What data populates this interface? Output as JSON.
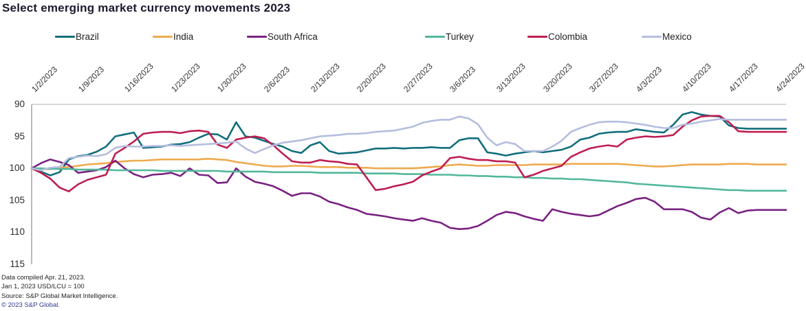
{
  "title": "Select emerging market currency movements 2023",
  "colors": {
    "title_text": "#1a1a2e",
    "axis_line": "#9c9c9c",
    "gridline_90": "#bfbfbf",
    "tick_text": "#333333",
    "footnote_text": "#222222",
    "copyright_text": "#2d3a8c"
  },
  "footer": {
    "lines": [
      "Data compiled Apr. 21, 2023.",
      "Jan 1, 2023 USD/LCU = 100",
      "Source: S&P Global Market Intelligence.",
      "© 2023 S&P Global."
    ]
  },
  "chart_data": {
    "type": "line",
    "title": "Select emerging market currency movements 2023",
    "xlabel": "",
    "ylabel": "",
    "baseline_note": "Jan 1, 2023 USD/LCU = 100",
    "y_ticks": [
      90,
      95,
      100,
      105,
      110,
      115
    ],
    "ylim": [
      90,
      115
    ],
    "y_axis_inverted": true,
    "grid": "single gridline at 90 (top of plot), left axis line only",
    "legend_position": "top",
    "x_tick_labels": [
      "1/2/2023",
      "1/9/2023",
      "1/16/2023",
      "1/23/2023",
      "1/30/2023",
      "2/6/2023",
      "2/13/2023",
      "2/20/2023",
      "2/27/2023",
      "3/6/2023",
      "3/13/2023",
      "3/20/2023",
      "3/27/2023",
      "4/3/2023",
      "4/10/2023",
      "4/17/2023",
      "4/24/2023"
    ],
    "dates": [
      "1/2",
      "1/3",
      "1/4",
      "1/5",
      "1/6",
      "1/9",
      "1/10",
      "1/11",
      "1/12",
      "1/13",
      "1/16",
      "1/17",
      "1/18",
      "1/19",
      "1/20",
      "1/23",
      "1/24",
      "1/25",
      "1/26",
      "1/27",
      "1/30",
      "1/31",
      "2/1",
      "2/2",
      "2/3",
      "2/6",
      "2/7",
      "2/8",
      "2/9",
      "2/10",
      "2/13",
      "2/14",
      "2/15",
      "2/16",
      "2/17",
      "2/20",
      "2/21",
      "2/22",
      "2/23",
      "2/24",
      "2/27",
      "2/28",
      "3/1",
      "3/2",
      "3/3",
      "3/6",
      "3/7",
      "3/8",
      "3/9",
      "3/10",
      "3/13",
      "3/14",
      "3/15",
      "3/16",
      "3/17",
      "3/20",
      "3/21",
      "3/22",
      "3/23",
      "3/24",
      "3/27",
      "3/28",
      "3/29",
      "3/30",
      "3/31",
      "4/3",
      "4/4",
      "4/5",
      "4/6",
      "4/7",
      "4/10",
      "4/11",
      "4/12",
      "4/13",
      "4/14",
      "4/17",
      "4/18",
      "4/19",
      "4/20",
      "4/21"
    ],
    "series": [
      {
        "name": "Brazil",
        "color": "#116e7c",
        "values": [
          100.0,
          100.5,
          101.1,
          100.6,
          98.6,
          98.1,
          97.9,
          97.4,
          96.6,
          95.0,
          94.7,
          94.4,
          96.8,
          96.7,
          96.6,
          96.3,
          96.2,
          95.9,
          95.2,
          94.6,
          94.7,
          95.5,
          92.8,
          95.0,
          95.2,
          95.7,
          96.2,
          96.6,
          97.3,
          97.6,
          96.4,
          95.9,
          97.3,
          97.7,
          97.6,
          97.5,
          97.2,
          96.9,
          96.9,
          96.8,
          96.9,
          96.8,
          96.8,
          96.7,
          96.8,
          96.8,
          95.6,
          95.3,
          95.3,
          97.5,
          97.7,
          98.0,
          97.7,
          97.5,
          97.3,
          97.5,
          97.3,
          97.1,
          96.6,
          95.5,
          95.2,
          94.6,
          94.4,
          94.3,
          94.3,
          93.9,
          94.1,
          94.3,
          94.4,
          93.2,
          91.6,
          91.2,
          91.6,
          91.8,
          91.9,
          93.3,
          93.7,
          93.8,
          93.8,
          93.8
        ]
      },
      {
        "name": "India",
        "color": "#edaa4e",
        "values": [
          100.0,
          100.2,
          100.1,
          99.9,
          99.8,
          99.6,
          99.4,
          99.3,
          99.2,
          99.0,
          98.9,
          98.8,
          98.8,
          98.7,
          98.6,
          98.6,
          98.6,
          98.6,
          98.6,
          98.5,
          98.6,
          98.7,
          99.0,
          99.2,
          99.4,
          99.6,
          99.7,
          99.7,
          99.6,
          99.6,
          99.7,
          99.8,
          99.8,
          99.8,
          99.9,
          99.9,
          99.9,
          100.0,
          100.0,
          100.0,
          100.0,
          100.0,
          99.9,
          99.8,
          99.7,
          99.5,
          99.4,
          99.5,
          99.6,
          99.6,
          99.5,
          99.5,
          99.5,
          99.5,
          99.4,
          99.4,
          99.4,
          99.4,
          99.3,
          99.3,
          99.3,
          99.3,
          99.3,
          99.3,
          99.4,
          99.5,
          99.6,
          99.7,
          99.7,
          99.6,
          99.5,
          99.4,
          99.4,
          99.4,
          99.4,
          99.3,
          99.3,
          99.3,
          99.4,
          99.4
        ]
      },
      {
        "name": "South Africa",
        "color": "#792180",
        "values": [
          100.0,
          99.2,
          98.6,
          99.0,
          99.5,
          100.7,
          100.5,
          100.3,
          99.8,
          98.8,
          100.0,
          100.9,
          101.4,
          101.0,
          100.9,
          100.7,
          101.2,
          100.0,
          101.0,
          101.1,
          102.3,
          102.2,
          100.0,
          101.3,
          102.1,
          102.4,
          102.8,
          103.5,
          104.3,
          103.9,
          103.9,
          104.4,
          105.2,
          105.6,
          106.1,
          106.5,
          107.1,
          107.3,
          107.5,
          107.8,
          108.0,
          108.2,
          107.8,
          108.2,
          108.5,
          109.3,
          109.5,
          109.4,
          109.0,
          108.2,
          107.3,
          106.8,
          107.0,
          107.5,
          107.9,
          108.2,
          106.4,
          106.8,
          107.1,
          107.3,
          107.5,
          107.3,
          106.6,
          105.9,
          105.4,
          104.8,
          104.6,
          105.2,
          106.4,
          106.4,
          106.4,
          106.8,
          107.7,
          108.0,
          106.9,
          106.2,
          107.0,
          106.6,
          106.5,
          106.5
        ]
      },
      {
        "name": "Turkey",
        "color": "#52b79a",
        "values": [
          100.0,
          100.0,
          100.1,
          100.1,
          100.1,
          100.2,
          100.2,
          100.2,
          100.2,
          100.3,
          100.3,
          100.3,
          100.3,
          100.3,
          100.4,
          100.4,
          100.4,
          100.4,
          100.4,
          100.4,
          100.4,
          100.5,
          100.5,
          100.5,
          100.5,
          100.5,
          100.6,
          100.6,
          100.6,
          100.6,
          100.6,
          100.7,
          100.7,
          100.7,
          100.7,
          100.7,
          100.8,
          100.8,
          100.8,
          100.8,
          100.9,
          100.9,
          100.9,
          101.0,
          101.0,
          101.0,
          101.1,
          101.1,
          101.2,
          101.2,
          101.3,
          101.3,
          101.4,
          101.4,
          101.5,
          101.5,
          101.6,
          101.6,
          101.7,
          101.7,
          101.8,
          101.9,
          102.0,
          102.1,
          102.2,
          102.4,
          102.5,
          102.6,
          102.7,
          102.8,
          102.9,
          103.0,
          103.1,
          103.2,
          103.3,
          103.4,
          103.4,
          103.5,
          103.5,
          103.5
        ]
      },
      {
        "name": "Colombia",
        "color": "#bd1e50",
        "values": [
          100.0,
          100.7,
          101.6,
          103.0,
          103.6,
          102.5,
          101.8,
          101.4,
          101.0,
          97.7,
          96.8,
          95.8,
          94.6,
          94.4,
          94.3,
          94.3,
          94.5,
          94.2,
          94.1,
          94.3,
          96.3,
          96.8,
          95.5,
          95.2,
          95.0,
          95.3,
          96.4,
          97.7,
          98.9,
          99.1,
          99.1,
          98.7,
          98.9,
          99.0,
          99.3,
          99.4,
          101.4,
          103.4,
          103.2,
          102.8,
          102.5,
          102.1,
          101.1,
          100.5,
          100.0,
          98.4,
          98.2,
          98.5,
          98.7,
          98.7,
          98.9,
          98.9,
          99.1,
          101.4,
          101.0,
          100.4,
          100.0,
          99.6,
          98.2,
          97.5,
          96.9,
          96.6,
          96.4,
          96.6,
          95.5,
          95.2,
          95.0,
          95.1,
          95.0,
          94.8,
          93.5,
          92.5,
          91.9,
          91.8,
          91.8,
          92.8,
          94.2,
          94.3,
          94.3,
          94.3
        ]
      },
      {
        "name": "Mexico",
        "color": "#b5bddf",
        "values": [
          100.0,
          100.3,
          99.9,
          99.8,
          98.4,
          98.2,
          98.0,
          98.1,
          97.8,
          96.8,
          96.5,
          96.6,
          96.6,
          96.5,
          96.5,
          96.4,
          96.5,
          96.4,
          96.3,
          96.2,
          96.1,
          96.0,
          95.8,
          96.9,
          97.6,
          97.0,
          96.4,
          96.0,
          95.8,
          95.6,
          95.3,
          95.0,
          94.9,
          94.8,
          94.6,
          94.6,
          94.5,
          94.3,
          94.2,
          94.1,
          93.8,
          93.5,
          92.9,
          92.6,
          92.4,
          92.4,
          91.9,
          92.2,
          93.1,
          95.2,
          96.4,
          95.9,
          96.2,
          97.3,
          97.3,
          97.3,
          96.6,
          95.7,
          94.3,
          93.7,
          93.2,
          92.8,
          92.7,
          92.7,
          92.8,
          93.0,
          93.2,
          93.5,
          93.7,
          93.7,
          93.2,
          93.0,
          92.7,
          92.5,
          92.3,
          92.4,
          92.4,
          92.4,
          92.4,
          92.4
        ]
      }
    ],
    "legend_item_x": [
      80,
      222,
      359,
      618,
      767,
      933
    ]
  }
}
